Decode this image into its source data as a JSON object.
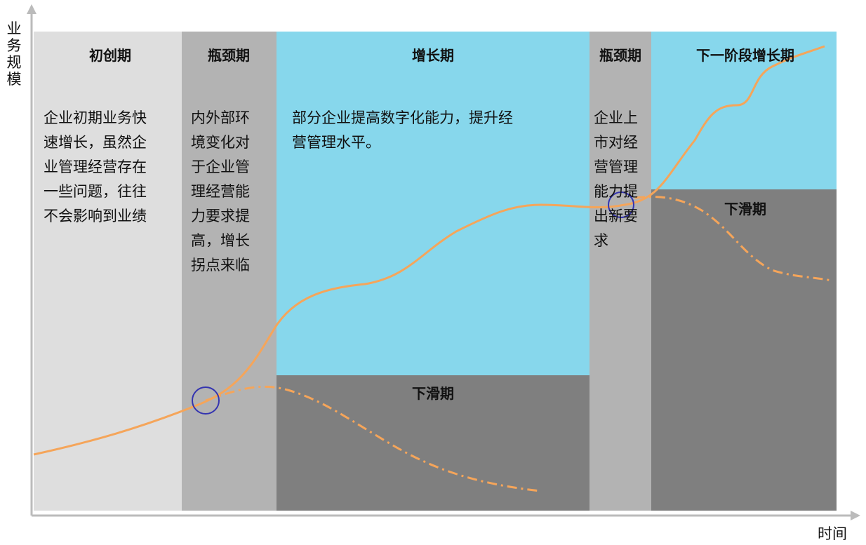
{
  "axis": {
    "y_label": "业务规模",
    "x_label": "时间"
  },
  "stages": [
    {
      "title": "初创期",
      "lines": [
        "企业初期业务快",
        "速增长，虽然企",
        "业管理经营存在",
        "一些问题，往往",
        "不会影响到业绩"
      ]
    },
    {
      "title": "瓶颈期",
      "lines": [
        "内外部环",
        "境变化对",
        "于企业管",
        "理经营能",
        "力要求提",
        "高，增长",
        "拐点来临"
      ]
    },
    {
      "title": "增长期",
      "lines": [
        "部分企业提高数字化能力，提升经",
        "营管理水平。"
      ]
    },
    {
      "title": "瓶颈期",
      "lines": [
        "企业上",
        "市对经",
        "营管理",
        "能力提",
        "出新要",
        "求"
      ]
    },
    {
      "title": "下一阶段增长期",
      "lines": []
    }
  ],
  "declines": [
    {
      "title": "下滑期"
    },
    {
      "title": "下滑期"
    }
  ]
}
